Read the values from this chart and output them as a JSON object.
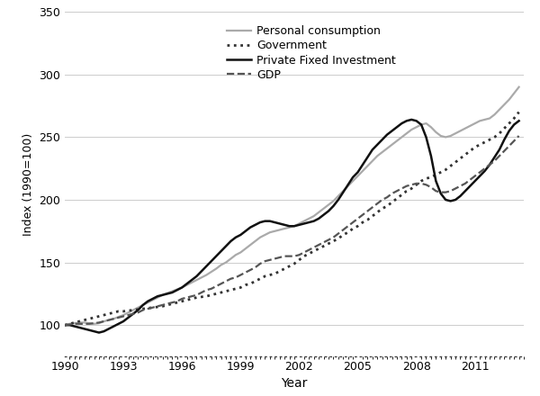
{
  "xlabel": "Year",
  "ylabel": "Index (1990=100)",
  "xlim": [
    1990,
    2013.5
  ],
  "ylim": [
    75,
    350
  ],
  "yticks": [
    100,
    150,
    200,
    250,
    300,
    350
  ],
  "xticks": [
    1990,
    1993,
    1996,
    1999,
    2002,
    2005,
    2008,
    2011
  ],
  "background_color": "#ffffff",
  "grid_color": "#cccccc",
  "series": {
    "personal_consumption": {
      "label": "Personal consumption",
      "color": "#aaaaaa",
      "linestyle": "-",
      "linewidth": 1.6,
      "data": {
        "years": [
          1990.0,
          1990.25,
          1990.5,
          1990.75,
          1991.0,
          1991.25,
          1991.5,
          1991.75,
          1992.0,
          1992.25,
          1992.5,
          1992.75,
          1993.0,
          1993.25,
          1993.5,
          1993.75,
          1994.0,
          1994.25,
          1994.5,
          1994.75,
          1995.0,
          1995.25,
          1995.5,
          1995.75,
          1996.0,
          1996.25,
          1996.5,
          1996.75,
          1997.0,
          1997.25,
          1997.5,
          1997.75,
          1998.0,
          1998.25,
          1998.5,
          1998.75,
          1999.0,
          1999.25,
          1999.5,
          1999.75,
          2000.0,
          2000.25,
          2000.5,
          2000.75,
          2001.0,
          2001.25,
          2001.5,
          2001.75,
          2002.0,
          2002.25,
          2002.5,
          2002.75,
          2003.0,
          2003.25,
          2003.5,
          2003.75,
          2004.0,
          2004.25,
          2004.5,
          2004.75,
          2005.0,
          2005.25,
          2005.5,
          2005.75,
          2006.0,
          2006.25,
          2006.5,
          2006.75,
          2007.0,
          2007.25,
          2007.5,
          2007.75,
          2008.0,
          2008.25,
          2008.5,
          2008.75,
          2009.0,
          2009.25,
          2009.5,
          2009.75,
          2010.0,
          2010.25,
          2010.5,
          2010.75,
          2011.0,
          2011.25,
          2011.5,
          2011.75,
          2012.0,
          2012.25,
          2012.5,
          2012.75,
          2013.0,
          2013.25
        ],
        "values": [
          100,
          101,
          101.5,
          102,
          102,
          101.5,
          101,
          101.5,
          103,
          104,
          105,
          106.5,
          108,
          110,
          112,
          114,
          116,
          118,
          120,
          122,
          124,
          125.5,
          127,
          128.5,
          130,
          132,
          134,
          136,
          138,
          140,
          142.5,
          145,
          148,
          150,
          153,
          156,
          158,
          161,
          164,
          167,
          170,
          172,
          174,
          175,
          176,
          177,
          178,
          179,
          181,
          183,
          185,
          187,
          190,
          193,
          196,
          199,
          203,
          207,
          211,
          215,
          219,
          223,
          227,
          231,
          235,
          238,
          241,
          244,
          247,
          250,
          253,
          256,
          258,
          260,
          261,
          258,
          254,
          251,
          250,
          251,
          253,
          255,
          257,
          259,
          261,
          263,
          264,
          265,
          268,
          272,
          276,
          280,
          285,
          290
        ]
      }
    },
    "government": {
      "label": "Government",
      "color": "#333333",
      "linestyle": ":",
      "linewidth": 2.0,
      "data": {
        "years": [
          1990.0,
          1990.25,
          1990.5,
          1990.75,
          1991.0,
          1991.25,
          1991.5,
          1991.75,
          1992.0,
          1992.25,
          1992.5,
          1992.75,
          1993.0,
          1993.25,
          1993.5,
          1993.75,
          1994.0,
          1994.25,
          1994.5,
          1994.75,
          1995.0,
          1995.25,
          1995.5,
          1995.75,
          1996.0,
          1996.25,
          1996.5,
          1996.75,
          1997.0,
          1997.25,
          1997.5,
          1997.75,
          1998.0,
          1998.25,
          1998.5,
          1998.75,
          1999.0,
          1999.25,
          1999.5,
          1999.75,
          2000.0,
          2000.25,
          2000.5,
          2000.75,
          2001.0,
          2001.25,
          2001.5,
          2001.75,
          2002.0,
          2002.25,
          2002.5,
          2002.75,
          2003.0,
          2003.25,
          2003.5,
          2003.75,
          2004.0,
          2004.25,
          2004.5,
          2004.75,
          2005.0,
          2005.25,
          2005.5,
          2005.75,
          2006.0,
          2006.25,
          2006.5,
          2006.75,
          2007.0,
          2007.25,
          2007.5,
          2007.75,
          2008.0,
          2008.25,
          2008.5,
          2008.75,
          2009.0,
          2009.25,
          2009.5,
          2009.75,
          2010.0,
          2010.25,
          2010.5,
          2010.75,
          2011.0,
          2011.25,
          2011.5,
          2011.75,
          2012.0,
          2012.25,
          2012.5,
          2012.75,
          2013.0,
          2013.25
        ],
        "values": [
          100,
          101,
          102,
          103,
          104,
          105,
          106,
          107,
          108,
          109,
          110,
          111,
          111,
          111.5,
          112,
          112.5,
          113,
          113.5,
          114,
          114.5,
          115,
          116,
          117,
          118,
          119,
          120,
          121,
          122,
          122.5,
          123,
          124,
          125,
          126,
          127,
          128,
          129,
          130,
          132,
          133,
          135,
          137,
          139,
          140,
          141,
          143,
          145,
          147,
          149,
          152,
          155,
          157,
          159,
          161,
          163,
          165,
          167,
          169,
          172,
          174,
          177,
          179,
          182,
          184,
          187,
          190,
          193,
          195,
          198,
          201,
          204,
          207,
          209,
          212,
          215,
          217,
          218,
          220,
          222,
          224,
          227,
          230,
          233,
          236,
          239,
          242,
          244,
          246,
          248,
          250,
          253,
          257,
          261,
          265,
          270
        ]
      }
    },
    "private_fixed_investment": {
      "label": "Private Fixed Investment",
      "color": "#111111",
      "linestyle": "-",
      "linewidth": 1.8,
      "data": {
        "years": [
          1990.0,
          1990.25,
          1990.5,
          1990.75,
          1991.0,
          1991.25,
          1991.5,
          1991.75,
          1992.0,
          1992.25,
          1992.5,
          1992.75,
          1993.0,
          1993.25,
          1993.5,
          1993.75,
          1994.0,
          1994.25,
          1994.5,
          1994.75,
          1995.0,
          1995.25,
          1995.5,
          1995.75,
          1996.0,
          1996.25,
          1996.5,
          1996.75,
          1997.0,
          1997.25,
          1997.5,
          1997.75,
          1998.0,
          1998.25,
          1998.5,
          1998.75,
          1999.0,
          1999.25,
          1999.5,
          1999.75,
          2000.0,
          2000.25,
          2000.5,
          2000.75,
          2001.0,
          2001.25,
          2001.5,
          2001.75,
          2002.0,
          2002.25,
          2002.5,
          2002.75,
          2003.0,
          2003.25,
          2003.5,
          2003.75,
          2004.0,
          2004.25,
          2004.5,
          2004.75,
          2005.0,
          2005.25,
          2005.5,
          2005.75,
          2006.0,
          2006.25,
          2006.5,
          2006.75,
          2007.0,
          2007.25,
          2007.5,
          2007.75,
          2008.0,
          2008.25,
          2008.5,
          2008.75,
          2009.0,
          2009.25,
          2009.5,
          2009.75,
          2010.0,
          2010.25,
          2010.5,
          2010.75,
          2011.0,
          2011.25,
          2011.5,
          2011.75,
          2012.0,
          2012.25,
          2012.5,
          2012.75,
          2013.0,
          2013.25
        ],
        "values": [
          100,
          100,
          99,
          98,
          97,
          96,
          95,
          94,
          95,
          97,
          99,
          101,
          103,
          106,
          109,
          112,
          116,
          119,
          121,
          123,
          124,
          125,
          126,
          128,
          130,
          133,
          136,
          139,
          143,
          147,
          151,
          155,
          159,
          163,
          167,
          170,
          172,
          175,
          178,
          180,
          182,
          183,
          183,
          182,
          181,
          180,
          179,
          179,
          180,
          181,
          182,
          183,
          185,
          188,
          191,
          195,
          200,
          206,
          212,
          218,
          222,
          228,
          234,
          240,
          244,
          248,
          252,
          255,
          258,
          261,
          263,
          264,
          263,
          260,
          250,
          235,
          215,
          205,
          200,
          199,
          200,
          203,
          207,
          211,
          215,
          219,
          223,
          228,
          234,
          240,
          248,
          255,
          260,
          263
        ]
      }
    },
    "gdp": {
      "label": "GDP",
      "color": "#555555",
      "linestyle": "--",
      "linewidth": 1.6,
      "data": {
        "years": [
          1990.0,
          1990.25,
          1990.5,
          1990.75,
          1991.0,
          1991.25,
          1991.5,
          1991.75,
          1992.0,
          1992.25,
          1992.5,
          1992.75,
          1993.0,
          1993.25,
          1993.5,
          1993.75,
          1994.0,
          1994.25,
          1994.5,
          1994.75,
          1995.0,
          1995.25,
          1995.5,
          1995.75,
          1996.0,
          1996.25,
          1996.5,
          1996.75,
          1997.0,
          1997.25,
          1997.5,
          1997.75,
          1998.0,
          1998.25,
          1998.5,
          1998.75,
          1999.0,
          1999.25,
          1999.5,
          1999.75,
          2000.0,
          2000.25,
          2000.5,
          2000.75,
          2001.0,
          2001.25,
          2001.5,
          2001.75,
          2002.0,
          2002.25,
          2002.5,
          2002.75,
          2003.0,
          2003.25,
          2003.5,
          2003.75,
          2004.0,
          2004.25,
          2004.5,
          2004.75,
          2005.0,
          2005.25,
          2005.5,
          2005.75,
          2006.0,
          2006.25,
          2006.5,
          2006.75,
          2007.0,
          2007.25,
          2007.5,
          2007.75,
          2008.0,
          2008.25,
          2008.5,
          2008.75,
          2009.0,
          2009.25,
          2009.5,
          2009.75,
          2010.0,
          2010.25,
          2010.5,
          2010.75,
          2011.0,
          2011.25,
          2011.5,
          2011.75,
          2012.0,
          2012.25,
          2012.5,
          2012.75,
          2013.0,
          2013.25
        ],
        "values": [
          100,
          100.5,
          101,
          101,
          101,
          101,
          101.5,
          102,
          103,
          104,
          105,
          106,
          107,
          108,
          109,
          110,
          112,
          113,
          114,
          115,
          116,
          117,
          118,
          119,
          121,
          122,
          123,
          124,
          126,
          128,
          129,
          131,
          133,
          135,
          137,
          138,
          140,
          142,
          144,
          146,
          149,
          151,
          152,
          153,
          154,
          155,
          155,
          155,
          156,
          158,
          160,
          162,
          164,
          166,
          168,
          170,
          173,
          176,
          179,
          182,
          185,
          188,
          191,
          194,
          197,
          200,
          202,
          205,
          207,
          209,
          211,
          212,
          213,
          213,
          212,
          210,
          207,
          206,
          206,
          207,
          209,
          211,
          213,
          216,
          219,
          222,
          225,
          228,
          231,
          235,
          239,
          243,
          247,
          251
        ]
      }
    }
  }
}
